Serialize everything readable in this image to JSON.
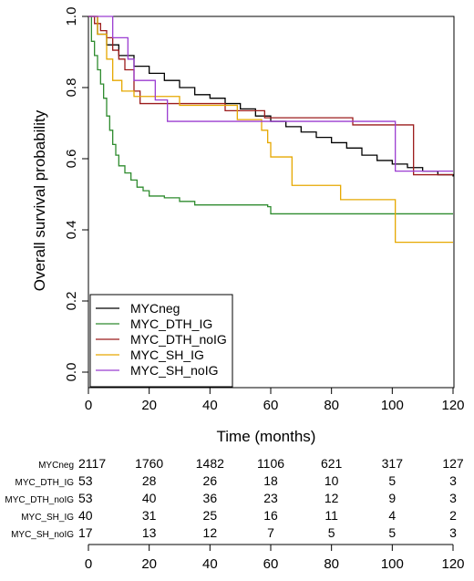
{
  "chart_data": {
    "type": "line",
    "xlabel": "Time (months)",
    "ylabel": "Overall survival probability",
    "xlim": [
      0,
      120
    ],
    "ylim": [
      0,
      1
    ],
    "x_ticks": [
      0,
      20,
      40,
      60,
      80,
      100,
      120
    ],
    "y_ticks": [
      0.0,
      0.2,
      0.4,
      0.6,
      0.8,
      1.0
    ],
    "y_tick_labels": [
      "0.0",
      "0.2",
      "0.4",
      "0.6",
      "0.8",
      "1.0"
    ],
    "grid": false,
    "legend_position": "bottom-left",
    "series": [
      {
        "name": "MYCneg",
        "color": "#000000",
        "points": [
          [
            0,
            1.0
          ],
          [
            3,
            0.95
          ],
          [
            6,
            0.92
          ],
          [
            10,
            0.89
          ],
          [
            15,
            0.86
          ],
          [
            20,
            0.84
          ],
          [
            25,
            0.82
          ],
          [
            30,
            0.8
          ],
          [
            35,
            0.78
          ],
          [
            40,
            0.77
          ],
          [
            45,
            0.755
          ],
          [
            50,
            0.74
          ],
          [
            55,
            0.72
          ],
          [
            60,
            0.705
          ],
          [
            65,
            0.69
          ],
          [
            70,
            0.675
          ],
          [
            75,
            0.66
          ],
          [
            80,
            0.645
          ],
          [
            85,
            0.63
          ],
          [
            90,
            0.61
          ],
          [
            95,
            0.595
          ],
          [
            100,
            0.585
          ],
          [
            105,
            0.575
          ],
          [
            110,
            0.565
          ],
          [
            115,
            0.555
          ],
          [
            120,
            0.55
          ]
        ]
      },
      {
        "name": "MYC_DTH_IG",
        "color": "#2e8b2e",
        "points": [
          [
            0,
            1.0
          ],
          [
            1,
            0.93
          ],
          [
            2,
            0.89
          ],
          [
            3,
            0.85
          ],
          [
            4,
            0.81
          ],
          [
            5,
            0.77
          ],
          [
            6,
            0.72
          ],
          [
            7,
            0.68
          ],
          [
            8,
            0.64
          ],
          [
            9,
            0.61
          ],
          [
            10,
            0.58
          ],
          [
            12,
            0.56
          ],
          [
            14,
            0.54
          ],
          [
            16,
            0.52
          ],
          [
            18,
            0.51
          ],
          [
            20,
            0.495
          ],
          [
            25,
            0.49
          ],
          [
            30,
            0.48
          ],
          [
            35,
            0.47
          ],
          [
            40,
            0.47
          ],
          [
            59,
            0.465
          ],
          [
            60,
            0.445
          ],
          [
            120,
            0.445
          ]
        ]
      },
      {
        "name": "MYC_DTH_noIG",
        "color": "#9b1b1b",
        "points": [
          [
            0,
            1.0
          ],
          [
            2,
            0.98
          ],
          [
            4,
            0.96
          ],
          [
            6,
            0.94
          ],
          [
            8,
            0.905
          ],
          [
            10,
            0.88
          ],
          [
            12,
            0.85
          ],
          [
            15,
            0.79
          ],
          [
            17,
            0.755
          ],
          [
            40,
            0.755
          ],
          [
            45,
            0.735
          ],
          [
            55,
            0.735
          ],
          [
            58,
            0.715
          ],
          [
            85,
            0.715
          ],
          [
            87,
            0.695
          ],
          [
            106,
            0.695
          ],
          [
            107,
            0.555
          ],
          [
            120,
            0.555
          ]
        ]
      },
      {
        "name": "MYC_SH_IG",
        "color": "#e6a800",
        "points": [
          [
            0,
            1.0
          ],
          [
            3,
            0.95
          ],
          [
            6,
            0.88
          ],
          [
            8,
            0.82
          ],
          [
            11,
            0.79
          ],
          [
            13,
            0.79
          ],
          [
            15,
            0.775
          ],
          [
            28,
            0.775
          ],
          [
            30,
            0.75
          ],
          [
            47,
            0.75
          ],
          [
            49,
            0.71
          ],
          [
            56,
            0.71
          ],
          [
            57,
            0.68
          ],
          [
            59,
            0.645
          ],
          [
            60,
            0.605
          ],
          [
            66,
            0.605
          ],
          [
            67,
            0.525
          ],
          [
            82,
            0.525
          ],
          [
            83,
            0.485
          ],
          [
            100,
            0.485
          ],
          [
            101,
            0.365
          ],
          [
            120,
            0.365
          ]
        ]
      },
      {
        "name": "MYC_SH_noIG",
        "color": "#9b3dd1",
        "points": [
          [
            0,
            1.0
          ],
          [
            7,
            1.0
          ],
          [
            8,
            0.94
          ],
          [
            12,
            0.94
          ],
          [
            13,
            0.88
          ],
          [
            15,
            0.82
          ],
          [
            21,
            0.82
          ],
          [
            22,
            0.765
          ],
          [
            25,
            0.765
          ],
          [
            26,
            0.705
          ],
          [
            100,
            0.705
          ],
          [
            101,
            0.565
          ],
          [
            120,
            0.565
          ]
        ]
      }
    ],
    "risk_table": {
      "times": [
        0,
        20,
        40,
        60,
        80,
        100,
        120
      ],
      "rows": [
        {
          "name": "MYCneg",
          "values": [
            "2117",
            "1760",
            "1482",
            "1106",
            "621",
            "317",
            "127"
          ]
        },
        {
          "name": "MYC_DTH_IG",
          "values": [
            "53",
            "28",
            "26",
            "18",
            "10",
            "5",
            "3"
          ]
        },
        {
          "name": "MYC_DTH_noIG",
          "values": [
            "53",
            "40",
            "36",
            "23",
            "12",
            "9",
            "3"
          ]
        },
        {
          "name": "MYC_SH_IG",
          "values": [
            "40",
            "31",
            "25",
            "16",
            "11",
            "4",
            "2"
          ]
        },
        {
          "name": "MYC_SH_noIG",
          "values": [
            "17",
            "13",
            "12",
            "7",
            "5",
            "5",
            "3"
          ]
        }
      ],
      "x_ticks": [
        0,
        20,
        40,
        60,
        80,
        100,
        120
      ]
    }
  }
}
